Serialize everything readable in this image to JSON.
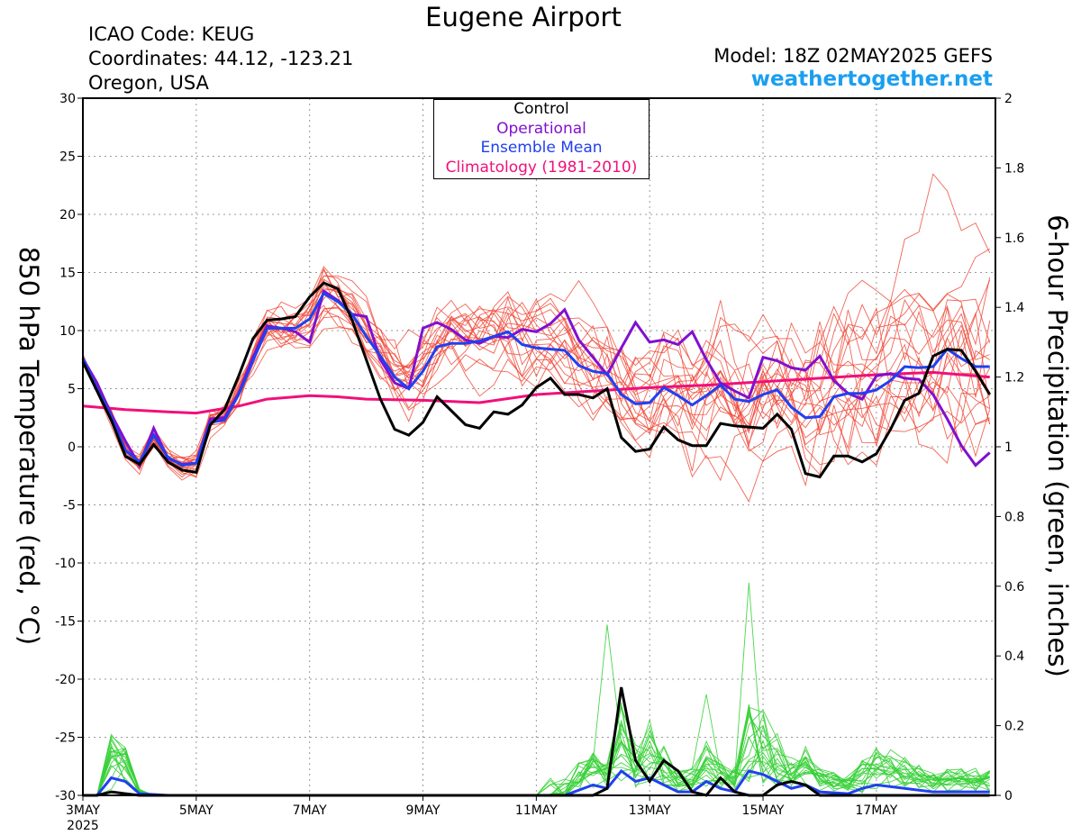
{
  "title": "Eugene Airport",
  "station": {
    "icao": "ICAO Code: KEUG",
    "coordinates": "Coordinates: 44.12, -123.21",
    "region": "Oregon, USA"
  },
  "model": "Model: 18Z 02MAY2025 GEFS",
  "brand": "weathertogether.net",
  "colors": {
    "control": "#000000",
    "operational": "#8010d0",
    "ensemble_mean": "#2040f0",
    "climatology": "#f0107a",
    "members_temp": "#f04a3a",
    "members_precip": "#38d038",
    "brand": "#1a9ff0"
  },
  "legend": [
    {
      "label": "Control",
      "color": "#000000"
    },
    {
      "label": "Operational",
      "color": "#8010d0"
    },
    {
      "label": "Ensemble Mean",
      "color": "#2040f0"
    },
    {
      "label": "Climatology (1981-2010)",
      "color": "#f0107a"
    }
  ],
  "chart_data": {
    "type": "line",
    "x_unit": "days after 3MAY 2025 00Z",
    "xlim": [
      0,
      16.1
    ],
    "x_ticks": [
      {
        "x": 0,
        "label": "3MAY",
        "year": "2025"
      },
      {
        "x": 2,
        "label": "5MAY"
      },
      {
        "x": 4,
        "label": "7MAY"
      },
      {
        "x": 6,
        "label": "9MAY"
      },
      {
        "x": 8,
        "label": "11MAY"
      },
      {
        "x": 10,
        "label": "13MAY"
      },
      {
        "x": 12,
        "label": "15MAY"
      },
      {
        "x": 14,
        "label": "17MAY"
      }
    ],
    "y_left": {
      "label": "850 hPa Temperature (red, °C)",
      "lim": [
        -30,
        30
      ],
      "ticks": [
        "-30",
        "-25",
        "-20",
        "-15",
        "-10",
        "-5",
        "0",
        "5",
        "10",
        "15",
        "20",
        "25",
        "30"
      ]
    },
    "y_right": {
      "label": "6-hour Precipitation (green, inches)",
      "lim": [
        0,
        2
      ],
      "ticks": [
        "0",
        "0.2",
        "0.4",
        "0.6",
        "0.8",
        "1",
        "1.2",
        "1.4",
        "1.6",
        "1.8",
        "2"
      ]
    },
    "grid": true,
    "legend_position": "top-center",
    "temperature": {
      "control": [
        [
          0,
          7.3
        ],
        [
          0.25,
          4.8
        ],
        [
          0.5,
          2.3
        ],
        [
          0.75,
          -0.8
        ],
        [
          1,
          -1.5
        ],
        [
          1.25,
          0.2
        ],
        [
          1.5,
          -1.3
        ],
        [
          1.75,
          -2
        ],
        [
          2,
          -2.2
        ],
        [
          2.25,
          1.9
        ],
        [
          2.5,
          3.2
        ],
        [
          2.75,
          6.1
        ],
        [
          3,
          9.3
        ],
        [
          3.25,
          10.9
        ],
        [
          3.5,
          11
        ],
        [
          3.75,
          11.2
        ],
        [
          4,
          12.9
        ],
        [
          4.25,
          14.1
        ],
        [
          4.5,
          13.6
        ],
        [
          4.75,
          10.9
        ],
        [
          5,
          7.5
        ],
        [
          5.25,
          4.1
        ],
        [
          5.5,
          1.5
        ],
        [
          5.75,
          1
        ],
        [
          6,
          2.1
        ],
        [
          6.25,
          4.3
        ],
        [
          6.5,
          3.1
        ],
        [
          6.75,
          1.9
        ],
        [
          7,
          1.6
        ],
        [
          7.25,
          3
        ],
        [
          7.5,
          2.8
        ],
        [
          7.75,
          3.6
        ],
        [
          8,
          5.1
        ],
        [
          8.25,
          5.9
        ],
        [
          8.5,
          4.5
        ],
        [
          8.75,
          4.5
        ],
        [
          9,
          4.2
        ],
        [
          9.25,
          5
        ],
        [
          9.5,
          0.8
        ],
        [
          9.75,
          -0.4
        ],
        [
          10,
          -0.2
        ],
        [
          10.25,
          1.7
        ],
        [
          10.5,
          0.6
        ],
        [
          10.75,
          0.1
        ],
        [
          11,
          0.1
        ],
        [
          11.25,
          2
        ],
        [
          11.5,
          1.8
        ],
        [
          11.75,
          1.7
        ],
        [
          12,
          1.6
        ],
        [
          12.25,
          2.8
        ],
        [
          12.5,
          1.5
        ],
        [
          12.75,
          -2.3
        ],
        [
          13,
          -2.6
        ],
        [
          13.25,
          -0.8
        ],
        [
          13.5,
          -0.8
        ],
        [
          13.75,
          -1.3
        ],
        [
          14,
          -0.6
        ],
        [
          14.25,
          1.5
        ],
        [
          14.5,
          4
        ],
        [
          14.75,
          4.6
        ],
        [
          15,
          7.8
        ],
        [
          15.25,
          8.4
        ],
        [
          15.5,
          8.3
        ],
        [
          15.75,
          6.5
        ],
        [
          16,
          4.5
        ]
      ],
      "operational": [
        [
          0,
          7.6
        ],
        [
          0.25,
          5.5
        ],
        [
          0.5,
          2.8
        ],
        [
          0.75,
          0.5
        ],
        [
          1,
          -1.6
        ],
        [
          1.25,
          1.6
        ],
        [
          1.5,
          -1
        ],
        [
          1.75,
          -1.5
        ],
        [
          2,
          -1.4
        ],
        [
          2.25,
          2.4
        ],
        [
          2.5,
          2.5
        ],
        [
          2.75,
          4.6
        ],
        [
          3,
          7.7
        ],
        [
          3.25,
          10.4
        ],
        [
          3.5,
          10.2
        ],
        [
          3.75,
          9.9
        ],
        [
          4,
          9
        ],
        [
          4.25,
          13.4
        ],
        [
          4.5,
          12.6
        ],
        [
          4.75,
          11.4
        ],
        [
          5,
          11.2
        ],
        [
          5.25,
          7.5
        ],
        [
          5.5,
          5.5
        ],
        [
          5.75,
          5
        ],
        [
          6,
          10.2
        ],
        [
          6.25,
          10.7
        ],
        [
          6.5,
          10.1
        ],
        [
          6.75,
          9.2
        ],
        [
          7,
          8.9
        ],
        [
          7.25,
          9.5
        ],
        [
          7.5,
          9.4
        ],
        [
          7.75,
          10.1
        ],
        [
          8,
          9.9
        ],
        [
          8.25,
          10.6
        ],
        [
          8.5,
          11.8
        ],
        [
          8.75,
          9.2
        ],
        [
          9,
          7.7
        ],
        [
          9.25,
          6.2
        ],
        [
          9.5,
          8.5
        ],
        [
          9.75,
          10.7
        ],
        [
          10,
          9
        ],
        [
          10.25,
          9.2
        ],
        [
          10.5,
          8.8
        ],
        [
          10.75,
          9.9
        ],
        [
          11,
          7.5
        ],
        [
          11.25,
          5.5
        ],
        [
          11.5,
          4.8
        ],
        [
          11.75,
          4.2
        ],
        [
          12,
          7.7
        ],
        [
          12.25,
          7.4
        ],
        [
          12.5,
          6.8
        ],
        [
          12.75,
          6.6
        ],
        [
          13,
          7.8
        ],
        [
          13.25,
          5.7
        ],
        [
          13.5,
          4.6
        ],
        [
          13.75,
          4.1
        ],
        [
          14,
          6.1
        ],
        [
          14.25,
          6.3
        ],
        [
          14.5,
          5.9
        ],
        [
          14.75,
          5.8
        ],
        [
          15,
          4.5
        ],
        [
          15.25,
          2.4
        ],
        [
          15.5,
          0.1
        ],
        [
          15.75,
          -1.6
        ],
        [
          16,
          -0.5
        ]
      ],
      "mean": [
        [
          0,
          7.6
        ],
        [
          0.25,
          5
        ],
        [
          0.5,
          2.6
        ],
        [
          0.75,
          -0.3
        ],
        [
          1,
          -1.3
        ],
        [
          1.25,
          1
        ],
        [
          1.5,
          -0.9
        ],
        [
          1.75,
          -1.6
        ],
        [
          2,
          -1.4
        ],
        [
          2.25,
          2.1
        ],
        [
          2.5,
          2.3
        ],
        [
          2.75,
          4.5
        ],
        [
          3,
          7.4
        ],
        [
          3.25,
          10.2
        ],
        [
          3.5,
          10.2
        ],
        [
          3.75,
          10.2
        ],
        [
          4,
          11
        ],
        [
          4.25,
          13.2
        ],
        [
          4.5,
          12.5
        ],
        [
          4.75,
          11.4
        ],
        [
          5,
          9.5
        ],
        [
          5.25,
          7.8
        ],
        [
          5.5,
          6
        ],
        [
          5.75,
          5
        ],
        [
          6,
          6.5
        ],
        [
          6.25,
          8.6
        ],
        [
          6.5,
          8.9
        ],
        [
          6.75,
          8.9
        ],
        [
          7,
          9.1
        ],
        [
          7.25,
          9.5
        ],
        [
          7.5,
          9.9
        ],
        [
          7.75,
          8.8
        ],
        [
          8,
          8.5
        ],
        [
          8.25,
          8.4
        ],
        [
          8.5,
          8.3
        ],
        [
          8.75,
          7
        ],
        [
          9,
          6.5
        ],
        [
          9.25,
          6.3
        ],
        [
          9.5,
          4.5
        ],
        [
          9.75,
          3.7
        ],
        [
          10,
          3.8
        ],
        [
          10.25,
          5.1
        ],
        [
          10.5,
          4.4
        ],
        [
          10.75,
          3.6
        ],
        [
          11,
          4.4
        ],
        [
          11.25,
          5.3
        ],
        [
          11.5,
          4.1
        ],
        [
          11.75,
          3.9
        ],
        [
          12,
          4.5
        ],
        [
          12.25,
          4.9
        ],
        [
          12.5,
          3.4
        ],
        [
          12.75,
          2.5
        ],
        [
          13,
          2.6
        ],
        [
          13.25,
          4.3
        ],
        [
          13.5,
          4.6
        ],
        [
          13.75,
          4.6
        ],
        [
          14,
          4.9
        ],
        [
          14.25,
          5.7
        ],
        [
          14.5,
          6.9
        ],
        [
          14.75,
          6.8
        ],
        [
          15,
          6.9
        ],
        [
          15.25,
          8.4
        ],
        [
          15.5,
          7.6
        ],
        [
          15.75,
          6.9
        ],
        [
          16,
          6.9
        ]
      ],
      "climatology": [
        [
          0,
          3.5
        ],
        [
          0.75,
          3.2
        ],
        [
          1.5,
          3.0
        ],
        [
          2,
          2.9
        ],
        [
          2.75,
          3.5
        ],
        [
          3.25,
          4.1
        ],
        [
          4,
          4.4
        ],
        [
          4.5,
          4.3
        ],
        [
          5,
          4.1
        ],
        [
          6,
          4.0
        ],
        [
          7,
          3.8
        ],
        [
          8,
          4.5
        ],
        [
          9,
          4.8
        ],
        [
          10,
          5.1
        ],
        [
          11,
          5.3
        ],
        [
          12,
          5.6
        ],
        [
          13,
          5.9
        ],
        [
          14,
          6.2
        ],
        [
          15,
          6.4
        ],
        [
          16,
          6.0
        ]
      ]
    },
    "precipitation": {
      "control": [
        [
          0,
          0
        ],
        [
          0.25,
          0
        ],
        [
          0.5,
          0.01
        ],
        [
          0.75,
          0.005
        ],
        [
          1,
          0
        ],
        [
          2,
          0
        ],
        [
          3,
          0
        ],
        [
          4,
          0
        ],
        [
          5,
          0
        ],
        [
          6,
          0
        ],
        [
          7,
          0
        ],
        [
          8,
          0
        ],
        [
          9,
          0
        ],
        [
          9.25,
          0.02
        ],
        [
          9.5,
          0.31
        ],
        [
          9.75,
          0.1
        ],
        [
          10,
          0.04
        ],
        [
          10.25,
          0.1
        ],
        [
          10.5,
          0.07
        ],
        [
          10.75,
          0.01
        ],
        [
          11,
          0
        ],
        [
          11.25,
          0.05
        ],
        [
          11.5,
          0.01
        ],
        [
          11.75,
          0
        ],
        [
          12,
          0
        ],
        [
          12.25,
          0.03
        ],
        [
          12.5,
          0.04
        ],
        [
          12.75,
          0.03
        ],
        [
          13,
          0
        ],
        [
          14,
          0
        ],
        [
          15,
          0
        ],
        [
          16,
          0
        ]
      ],
      "mean": [
        [
          0,
          0
        ],
        [
          0.25,
          0
        ],
        [
          0.5,
          0.05
        ],
        [
          0.75,
          0.04
        ],
        [
          1,
          0.005
        ],
        [
          1.5,
          0
        ],
        [
          2,
          0
        ],
        [
          3,
          0
        ],
        [
          4,
          0
        ],
        [
          5,
          0
        ],
        [
          6,
          0
        ],
        [
          7,
          0
        ],
        [
          8,
          0
        ],
        [
          8.5,
          0
        ],
        [
          9,
          0.03
        ],
        [
          9.25,
          0.02
        ],
        [
          9.5,
          0.07
        ],
        [
          9.75,
          0.04
        ],
        [
          10,
          0.05
        ],
        [
          10.25,
          0.03
        ],
        [
          10.5,
          0.01
        ],
        [
          10.75,
          0.01
        ],
        [
          11,
          0.04
        ],
        [
          11.25,
          0.02
        ],
        [
          11.5,
          0.01
        ],
        [
          11.75,
          0.07
        ],
        [
          12,
          0.06
        ],
        [
          12.25,
          0.04
        ],
        [
          12.5,
          0.02
        ],
        [
          12.75,
          0.03
        ],
        [
          13,
          0.01
        ],
        [
          13.5,
          0.005
        ],
        [
          13.75,
          0.02
        ],
        [
          14,
          0.03
        ],
        [
          14.5,
          0.02
        ],
        [
          15,
          0.01
        ],
        [
          15.5,
          0.01
        ],
        [
          16,
          0.01
        ]
      ]
    }
  }
}
